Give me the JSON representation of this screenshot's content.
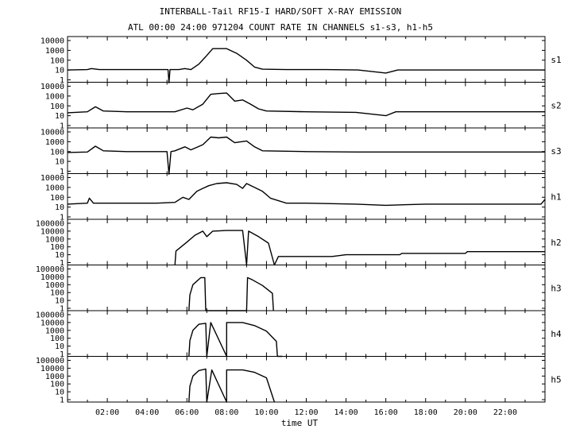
{
  "chart_data": {
    "type": "line",
    "title": "INTERBALL-Tail RF15-I HARD/SOFT X-RAY EMISSION",
    "subtitle": "ATL 00:00 24:00 971204  COUNT RATE IN CHANNELS s1-s3, h1-h5",
    "xlabel": "time UT",
    "x_unit": "hours UT",
    "xlim": [
      0,
      24
    ],
    "x_tick_labels": [
      "02:00",
      "04:00",
      "06:00",
      "08:00",
      "10:00",
      "12:00",
      "14:00",
      "16:00",
      "18:00",
      "20:00",
      "22:00"
    ],
    "y_scale": "log",
    "grid": false,
    "series": [
      {
        "name": "s1",
        "y_tick_labels": [
          "10000",
          "1000",
          "100",
          "10",
          "1"
        ],
        "ylim": [
          1,
          10000
        ],
        "points": [
          [
            0,
            10
          ],
          [
            1,
            11
          ],
          [
            1.2,
            14
          ],
          [
            1.6,
            11
          ],
          [
            3,
            11
          ],
          [
            4.5,
            11
          ],
          [
            5.05,
            11
          ],
          [
            5.1,
            0.5
          ],
          [
            5.15,
            11
          ],
          [
            5.6,
            11
          ],
          [
            5.9,
            14
          ],
          [
            6.2,
            11
          ],
          [
            6.6,
            40
          ],
          [
            7,
            300
          ],
          [
            7.3,
            1500
          ],
          [
            8,
            1500
          ],
          [
            8.5,
            500
          ],
          [
            9,
            100
          ],
          [
            9.4,
            20
          ],
          [
            9.8,
            12
          ],
          [
            11,
            11
          ],
          [
            13,
            11
          ],
          [
            14.6,
            10
          ],
          [
            16,
            5
          ],
          [
            16.6,
            10
          ],
          [
            18,
            10
          ],
          [
            20,
            10
          ],
          [
            22,
            10
          ],
          [
            24,
            10
          ]
        ]
      },
      {
        "name": "s2",
        "y_tick_labels": [
          "10000",
          "1000",
          "100",
          "10",
          "1"
        ],
        "ylim": [
          1,
          10000
        ],
        "points": [
          [
            0,
            20
          ],
          [
            1,
            25
          ],
          [
            1.4,
            80
          ],
          [
            1.8,
            30
          ],
          [
            3,
            25
          ],
          [
            4.5,
            25
          ],
          [
            5.4,
            25
          ],
          [
            6,
            60
          ],
          [
            6.3,
            40
          ],
          [
            6.8,
            150
          ],
          [
            7.2,
            1500
          ],
          [
            7.6,
            1800
          ],
          [
            8,
            2000
          ],
          [
            8.4,
            300
          ],
          [
            8.8,
            400
          ],
          [
            9.2,
            150
          ],
          [
            9.6,
            50
          ],
          [
            10,
            30
          ],
          [
            12,
            25
          ],
          [
            14.5,
            22
          ],
          [
            16,
            10
          ],
          [
            16.5,
            25
          ],
          [
            18,
            25
          ],
          [
            20,
            25
          ],
          [
            22,
            25
          ],
          [
            24,
            25
          ]
        ]
      },
      {
        "name": "s3",
        "y_tick_labels": [
          "10000",
          "1000",
          "100",
          "10",
          "1"
        ],
        "ylim": [
          1,
          10000
        ],
        "points": [
          [
            0,
            80
          ],
          [
            1,
            90
          ],
          [
            1.4,
            350
          ],
          [
            1.8,
            120
          ],
          [
            3,
            100
          ],
          [
            4.5,
            100
          ],
          [
            5,
            100
          ],
          [
            5.1,
            0.5
          ],
          [
            5.2,
            100
          ],
          [
            5.4,
            120
          ],
          [
            5.9,
            300
          ],
          [
            6.2,
            150
          ],
          [
            6.8,
            500
          ],
          [
            7.2,
            3000
          ],
          [
            7.6,
            2500
          ],
          [
            8,
            3000
          ],
          [
            8.4,
            800
          ],
          [
            9,
            1200
          ],
          [
            9.4,
            300
          ],
          [
            9.8,
            120
          ],
          [
            12,
            100
          ],
          [
            14.5,
            90
          ],
          [
            16,
            90
          ],
          [
            18,
            90
          ],
          [
            20,
            90
          ],
          [
            22,
            90
          ],
          [
            24,
            90
          ]
        ]
      },
      {
        "name": "h1",
        "y_tick_labels": [
          "10000",
          "1000",
          "100",
          "10",
          "1"
        ],
        "ylim": [
          1,
          10000
        ],
        "points": [
          [
            0,
            20
          ],
          [
            1,
            25
          ],
          [
            1.1,
            80
          ],
          [
            1.3,
            25
          ],
          [
            3,
            25
          ],
          [
            4.5,
            25
          ],
          [
            5.4,
            30
          ],
          [
            5.8,
            100
          ],
          [
            6.1,
            60
          ],
          [
            6.5,
            400
          ],
          [
            6.8,
            800
          ],
          [
            7.1,
            1500
          ],
          [
            7.5,
            2500
          ],
          [
            8,
            3000
          ],
          [
            8.5,
            2000
          ],
          [
            8.8,
            800
          ],
          [
            9,
            2500
          ],
          [
            9.4,
            1000
          ],
          [
            9.8,
            400
          ],
          [
            10.2,
            80
          ],
          [
            11,
            25
          ],
          [
            12,
            25
          ],
          [
            14.5,
            20
          ],
          [
            16,
            15
          ],
          [
            18,
            20
          ],
          [
            20,
            20
          ],
          [
            22,
            20
          ],
          [
            23.8,
            20
          ],
          [
            24,
            60
          ]
        ]
      },
      {
        "name": "h2",
        "y_tick_labels": [
          "100000",
          "10000",
          "1000",
          "100",
          "10",
          "1"
        ],
        "ylim": [
          1,
          100000
        ],
        "points": [
          [
            5.4,
            0.5
          ],
          [
            5.45,
            30
          ],
          [
            6,
            400
          ],
          [
            6.4,
            3000
          ],
          [
            6.8,
            10000
          ],
          [
            7,
            2000
          ],
          [
            7.3,
            10000
          ],
          [
            8,
            12000
          ],
          [
            8.8,
            12000
          ],
          [
            9,
            0.5
          ],
          [
            9.1,
            10000
          ],
          [
            9.6,
            2000
          ],
          [
            10.1,
            300
          ],
          [
            10.4,
            0.5
          ],
          [
            10.6,
            6
          ],
          [
            13.3,
            6
          ],
          [
            14,
            10
          ],
          [
            16.7,
            10
          ],
          [
            16.8,
            15
          ],
          [
            20,
            15
          ],
          [
            20.1,
            25
          ],
          [
            24,
            25
          ]
        ]
      },
      {
        "name": "h3",
        "y_tick_labels": [
          "100000",
          "10000",
          "1000",
          "100",
          "10",
          "1"
        ],
        "ylim": [
          1,
          100000
        ],
        "points": [
          [
            6.1,
            0.5
          ],
          [
            6.15,
            50
          ],
          [
            6.3,
            1000
          ],
          [
            6.7,
            8000
          ],
          [
            6.9,
            8000
          ],
          [
            6.95,
            0.5
          ],
          [
            9,
            0.5
          ],
          [
            9.05,
            8000
          ],
          [
            9.3,
            4000
          ],
          [
            9.8,
            800
          ],
          [
            10.3,
            80
          ],
          [
            10.35,
            0.5
          ]
        ]
      },
      {
        "name": "h4",
        "y_tick_labels": [
          "100000",
          "10000",
          "1000",
          "100",
          "10",
          "1"
        ],
        "ylim": [
          1,
          100000
        ],
        "points": [
          [
            6.1,
            0.5
          ],
          [
            6.15,
            50
          ],
          [
            6.3,
            1000
          ],
          [
            6.6,
            6000
          ],
          [
            6.95,
            8000
          ],
          [
            7,
            0.5
          ],
          [
            7.2,
            10000
          ],
          [
            8,
            0.5
          ],
          [
            8,
            10000
          ],
          [
            8.8,
            10000
          ],
          [
            9.4,
            4000
          ],
          [
            10,
            800
          ],
          [
            10.5,
            40
          ],
          [
            10.55,
            0.5
          ],
          [
            10.8,
            0.5
          ]
        ]
      },
      {
        "name": "h5",
        "y_tick_labels": [
          "100000",
          "10000",
          "1000",
          "100",
          "10",
          "1"
        ],
        "ylim": [
          1,
          100000
        ],
        "points": [
          [
            6.1,
            0.5
          ],
          [
            6.15,
            50
          ],
          [
            6.3,
            1000
          ],
          [
            6.6,
            5000
          ],
          [
            6.95,
            8000
          ],
          [
            7,
            0.5
          ],
          [
            7.25,
            6000
          ],
          [
            8,
            0.5
          ],
          [
            8,
            6000
          ],
          [
            8.8,
            6000
          ],
          [
            9.4,
            3000
          ],
          [
            10,
            600
          ],
          [
            10.4,
            0.5
          ]
        ]
      }
    ]
  }
}
